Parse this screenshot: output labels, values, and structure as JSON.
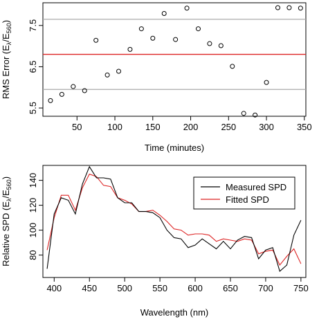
{
  "chart_data": [
    {
      "type": "scatter",
      "xlabel": "Time (minutes)",
      "ylabel_main": "RMS Error (E",
      "ylabel_sub1": "λ",
      "ylabel_sep": "/E",
      "ylabel_sub2": "560",
      "ylabel_end": ")",
      "xlim": [
        5,
        352
      ],
      "ylim": [
        5.3,
        8.05
      ],
      "xticks": [
        50,
        100,
        150,
        200,
        250,
        300,
        350
      ],
      "yticks": [
        5.5,
        6.5,
        7.5
      ],
      "ytick_labels": [
        "5.5",
        "6.5",
        "7.5"
      ],
      "grid": false,
      "hlines": [
        {
          "y": 7.65,
          "color": "#aaaaaa"
        },
        {
          "y": 6.8,
          "color": "#dd2222"
        },
        {
          "y": 5.95,
          "color": "#aaaaaa"
        }
      ],
      "x": [
        15,
        30,
        45,
        60,
        75,
        90,
        105,
        120,
        135,
        150,
        165,
        180,
        195,
        210,
        225,
        240,
        255,
        270,
        285,
        300,
        315,
        330,
        345
      ],
      "y": [
        5.68,
        5.83,
        6.02,
        5.92,
        7.14,
        6.3,
        6.39,
        6.92,
        7.42,
        7.19,
        7.79,
        7.16,
        7.92,
        7.42,
        7.06,
        7.01,
        6.51,
        5.37,
        5.33,
        6.12,
        7.93,
        7.93,
        7.92
      ],
      "point_color": "#000000"
    },
    {
      "type": "line",
      "xlabel": "Wavelength (nm)",
      "ylabel_main": "Relative SPD (E",
      "ylabel_sub1": "λ",
      "ylabel_sep": "/E",
      "ylabel_sub2": "560",
      "ylabel_end": ")",
      "xlim": [
        384,
        757
      ],
      "ylim": [
        62,
        152
      ],
      "xticks": [
        400,
        450,
        500,
        550,
        600,
        650,
        700,
        750
      ],
      "yticks": [
        80,
        100,
        120,
        140
      ],
      "grid": false,
      "legend_position": "top-right",
      "x": [
        390,
        400,
        410,
        420,
        430,
        440,
        450,
        460,
        470,
        480,
        490,
        500,
        510,
        520,
        530,
        540,
        550,
        560,
        570,
        580,
        590,
        600,
        610,
        620,
        630,
        640,
        650,
        660,
        670,
        680,
        690,
        700,
        710,
        720,
        730,
        740,
        750
      ],
      "series": [
        {
          "name": "Measured SPD",
          "color": "#000000",
          "values": [
            69,
            113,
            126,
            124,
            113,
            137,
            151,
            142,
            142,
            141,
            126,
            122,
            122,
            115,
            115,
            114,
            110,
            100,
            94,
            93,
            86,
            88,
            93,
            89,
            85,
            91,
            85,
            92,
            95,
            94,
            77,
            84,
            86,
            67,
            72,
            96,
            108
          ]
        },
        {
          "name": "Fitted SPD",
          "color": "#dd2222",
          "values": [
            84,
            110,
            128,
            128,
            116,
            134,
            145,
            143,
            136,
            135,
            126,
            124,
            121,
            115,
            115,
            116,
            112,
            107,
            101,
            100,
            96,
            97,
            97,
            96,
            91,
            93,
            92,
            91,
            93,
            92,
            81,
            83,
            84,
            72,
            79,
            85,
            73
          ]
        }
      ]
    }
  ]
}
